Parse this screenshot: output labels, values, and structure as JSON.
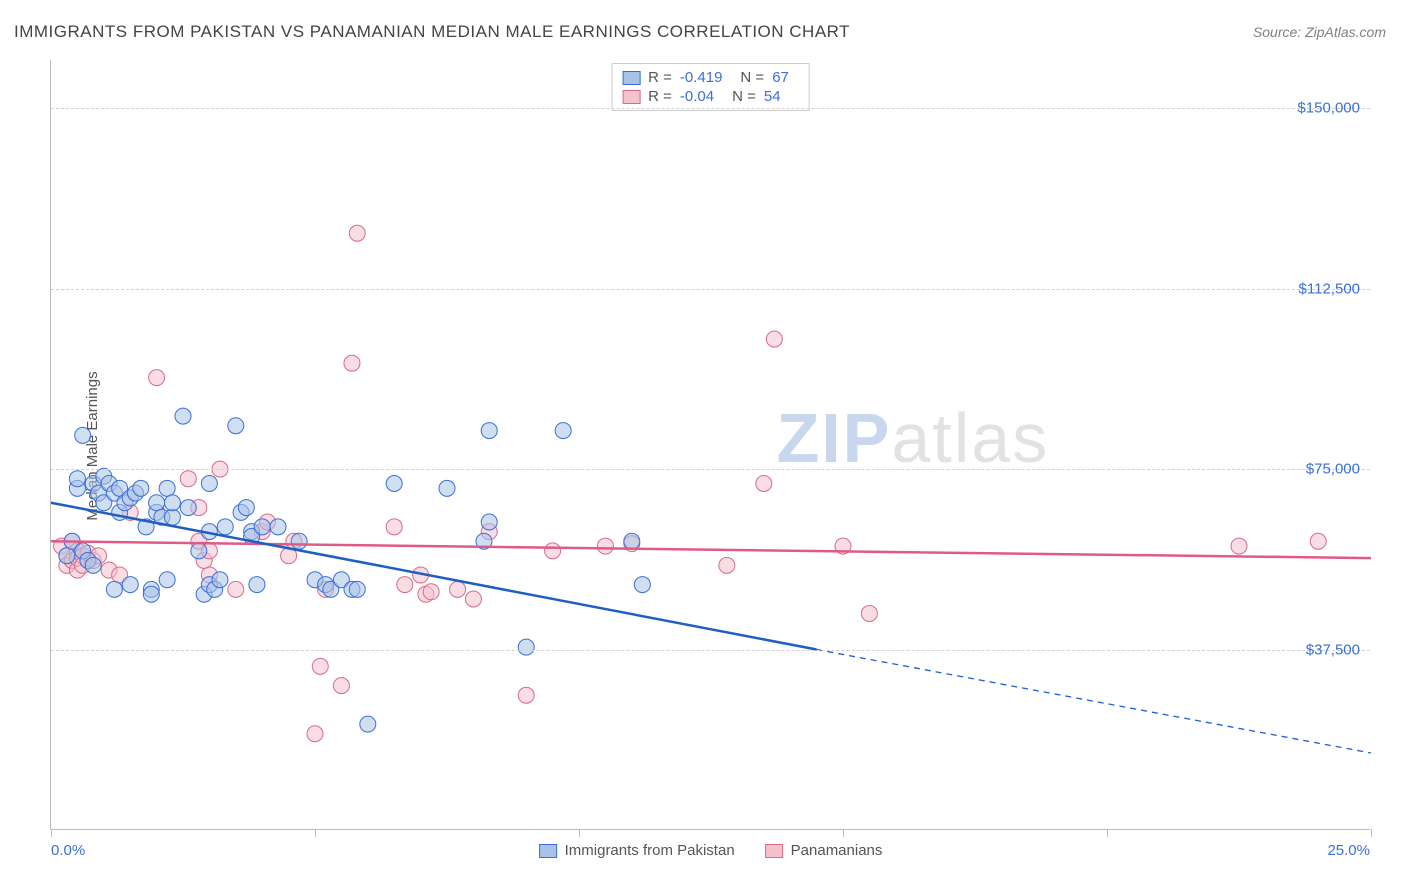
{
  "title": "IMMIGRANTS FROM PAKISTAN VS PANAMANIAN MEDIAN MALE EARNINGS CORRELATION CHART",
  "source_label": "Source: ZipAtlas.com",
  "ylabel": "Median Male Earnings",
  "watermark": {
    "part1": "ZIP",
    "part2": "atlas"
  },
  "chart": {
    "type": "scatter",
    "xlim": [
      0.0,
      25.0
    ],
    "ylim": [
      0,
      160000
    ],
    "x_ticks": [
      0,
      5,
      10,
      15,
      20,
      25
    ],
    "x_tick_labels_shown": {
      "0": "0.0%",
      "25": "25.0%"
    },
    "y_ticks": [
      37500,
      75000,
      112500,
      150000
    ],
    "y_tick_labels": [
      "$37,500",
      "$75,000",
      "$112,500",
      "$150,000"
    ],
    "grid_color": "#d0d0d0",
    "axis_color": "#bbbbbb",
    "background_color": "#ffffff",
    "label_color": "#555555",
    "tick_label_color": "#3a6fd8",
    "title_fontsize": 17,
    "label_fontsize": 15,
    "series": [
      {
        "name": "Immigrants from Pakistan",
        "marker_color": "#a9c3e8",
        "marker_border": "#3a6fd8",
        "marker_opacity": 0.55,
        "marker_radius": 8,
        "line_color": "#1f5fc4",
        "line_width": 2.5,
        "R": -0.419,
        "N": 67,
        "trend": {
          "x1": 0,
          "y1": 68000,
          "x2": 14.5,
          "y2": 37500,
          "x2_dash": 25,
          "y2_dash": 16000
        },
        "points": [
          [
            0.3,
            57000
          ],
          [
            0.4,
            60000
          ],
          [
            0.5,
            71000
          ],
          [
            0.5,
            73000
          ],
          [
            0.6,
            82000
          ],
          [
            0.6,
            58000
          ],
          [
            0.7,
            56000
          ],
          [
            0.8,
            72000
          ],
          [
            0.8,
            55000
          ],
          [
            0.9,
            70000
          ],
          [
            1.0,
            73500
          ],
          [
            1.0,
            68000
          ],
          [
            1.1,
            72000
          ],
          [
            1.2,
            70000
          ],
          [
            1.2,
            50000
          ],
          [
            1.3,
            71000
          ],
          [
            1.3,
            66000
          ],
          [
            1.4,
            68000
          ],
          [
            1.5,
            69000
          ],
          [
            1.5,
            51000
          ],
          [
            1.6,
            70000
          ],
          [
            1.7,
            71000
          ],
          [
            1.8,
            63000
          ],
          [
            1.9,
            50000
          ],
          [
            1.9,
            49000
          ],
          [
            2.0,
            66000
          ],
          [
            2.0,
            68000
          ],
          [
            2.1,
            65000
          ],
          [
            2.2,
            71000
          ],
          [
            2.2,
            52000
          ],
          [
            2.3,
            65000
          ],
          [
            2.3,
            68000
          ],
          [
            2.5,
            86000
          ],
          [
            2.6,
            67000
          ],
          [
            2.8,
            58000
          ],
          [
            2.9,
            49000
          ],
          [
            3.0,
            62000
          ],
          [
            3.0,
            72000
          ],
          [
            3.0,
            51000
          ],
          [
            3.1,
            50000
          ],
          [
            3.2,
            52000
          ],
          [
            3.3,
            63000
          ],
          [
            3.5,
            84000
          ],
          [
            3.6,
            66000
          ],
          [
            3.7,
            67000
          ],
          [
            3.8,
            62000
          ],
          [
            3.8,
            61000
          ],
          [
            3.9,
            51000
          ],
          [
            4.0,
            63000
          ],
          [
            4.3,
            63000
          ],
          [
            4.7,
            60000
          ],
          [
            5.0,
            52000
          ],
          [
            5.2,
            51000
          ],
          [
            5.3,
            50000
          ],
          [
            5.5,
            52000
          ],
          [
            5.7,
            50000
          ],
          [
            5.8,
            50000
          ],
          [
            6.0,
            22000
          ],
          [
            6.5,
            72000
          ],
          [
            7.5,
            71000
          ],
          [
            8.2,
            60000
          ],
          [
            8.3,
            64000
          ],
          [
            8.3,
            83000
          ],
          [
            9.0,
            38000
          ],
          [
            9.7,
            83000
          ],
          [
            11.0,
            60000
          ],
          [
            11.2,
            51000
          ]
        ]
      },
      {
        "name": "Panamanians",
        "marker_color": "#f4c1cd",
        "marker_border": "#d86b8a",
        "marker_opacity": 0.55,
        "marker_radius": 8,
        "line_color": "#e05a88",
        "line_width": 2.5,
        "R": -0.04,
        "N": 54,
        "trend": {
          "x1": 0,
          "y1": 60000,
          "x2": 25,
          "y2": 56500
        },
        "points": [
          [
            0.2,
            59000
          ],
          [
            0.3,
            57000
          ],
          [
            0.3,
            55000
          ],
          [
            0.4,
            56000
          ],
          [
            0.4,
            60000
          ],
          [
            0.5,
            54000
          ],
          [
            0.5,
            58000
          ],
          [
            0.5,
            56500
          ],
          [
            0.6,
            57000
          ],
          [
            0.6,
            55000
          ],
          [
            0.7,
            57500
          ],
          [
            0.8,
            56000
          ],
          [
            0.9,
            57000
          ],
          [
            1.1,
            54000
          ],
          [
            1.3,
            53000
          ],
          [
            1.5,
            66000
          ],
          [
            2.0,
            94000
          ],
          [
            2.6,
            73000
          ],
          [
            2.8,
            67000
          ],
          [
            2.8,
            60000
          ],
          [
            2.9,
            56000
          ],
          [
            3.0,
            53000
          ],
          [
            3.0,
            58000
          ],
          [
            3.2,
            75000
          ],
          [
            3.5,
            50000
          ],
          [
            4.0,
            62000
          ],
          [
            4.1,
            64000
          ],
          [
            4.5,
            57000
          ],
          [
            4.6,
            60000
          ],
          [
            5.0,
            20000
          ],
          [
            5.1,
            34000
          ],
          [
            5.2,
            50000
          ],
          [
            5.5,
            30000
          ],
          [
            5.7,
            97000
          ],
          [
            5.8,
            124000
          ],
          [
            6.5,
            63000
          ],
          [
            6.7,
            51000
          ],
          [
            7.0,
            53000
          ],
          [
            7.1,
            49000
          ],
          [
            7.2,
            49500
          ],
          [
            7.7,
            50000
          ],
          [
            8.0,
            48000
          ],
          [
            8.3,
            62000
          ],
          [
            9.0,
            28000
          ],
          [
            9.5,
            58000
          ],
          [
            10.5,
            59000
          ],
          [
            11.0,
            59500
          ],
          [
            12.8,
            55000
          ],
          [
            13.5,
            72000
          ],
          [
            13.7,
            102000
          ],
          [
            15.0,
            59000
          ],
          [
            15.5,
            45000
          ],
          [
            22.5,
            59000
          ],
          [
            24.0,
            60000
          ]
        ]
      }
    ]
  }
}
